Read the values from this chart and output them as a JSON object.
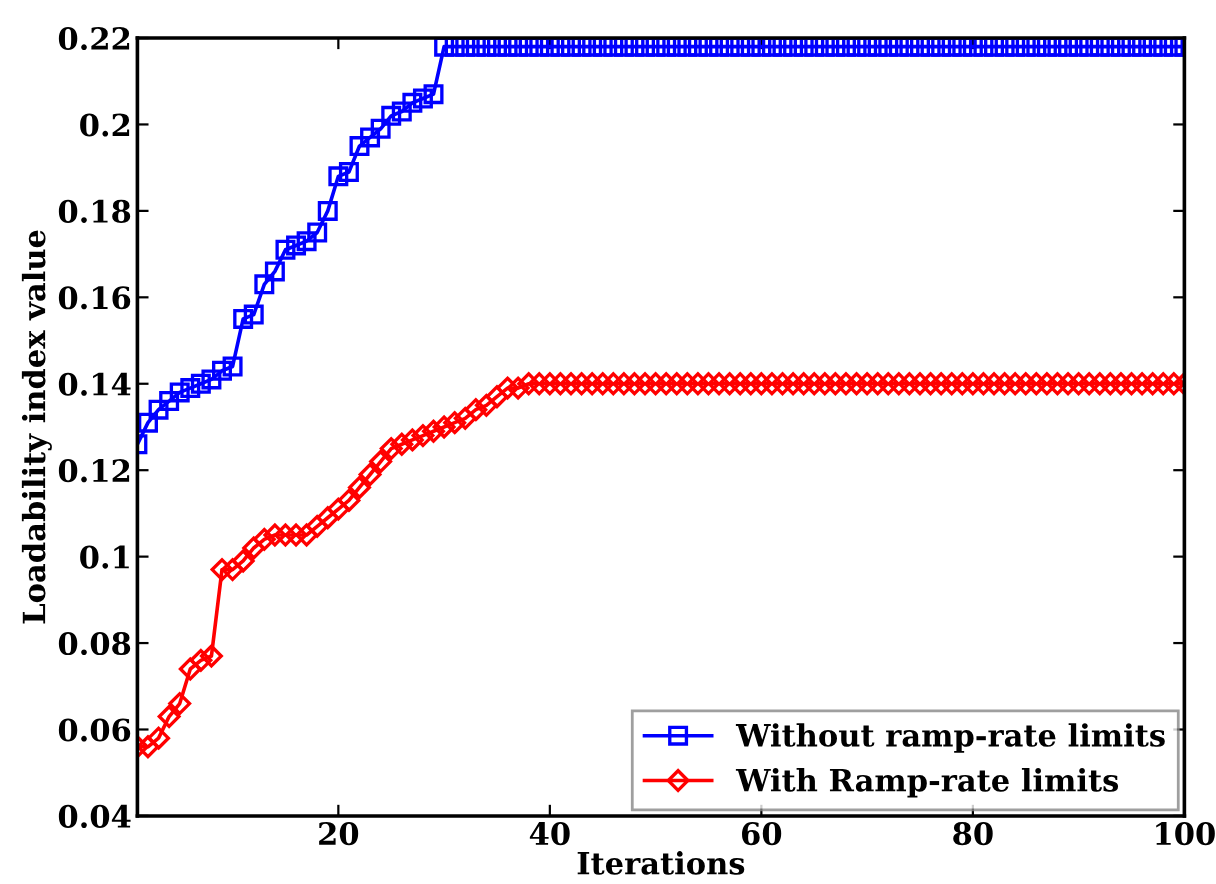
{
  "chart_data": {
    "type": "line",
    "xlabel": "Iterations",
    "ylabel": "Loadability index value",
    "x": [
      1,
      2,
      3,
      4,
      5,
      6,
      7,
      8,
      9,
      10,
      11,
      12,
      13,
      14,
      15,
      16,
      17,
      18,
      19,
      20,
      21,
      22,
      23,
      24,
      25,
      26,
      27,
      28,
      29,
      30,
      31,
      32,
      33,
      34,
      35,
      36,
      37,
      38,
      39,
      40,
      41,
      42,
      43,
      44,
      45,
      46,
      47,
      48,
      49,
      50,
      51,
      52,
      53,
      54,
      55,
      56,
      57,
      58,
      59,
      60,
      61,
      62,
      63,
      64,
      65,
      66,
      67,
      68,
      69,
      70,
      71,
      72,
      73,
      74,
      75,
      76,
      77,
      78,
      79,
      80,
      81,
      82,
      83,
      84,
      85,
      86,
      87,
      88,
      89,
      90,
      91,
      92,
      93,
      94,
      95,
      96,
      97,
      98,
      99,
      100
    ],
    "series": [
      {
        "name": "Without ramp-rate limits",
        "color": "#0000ff",
        "marker": "square",
        "values": [
          0.126,
          0.131,
          0.134,
          0.136,
          0.138,
          0.139,
          0.14,
          0.141,
          0.143,
          0.144,
          0.155,
          0.156,
          0.163,
          0.166,
          0.171,
          0.172,
          0.173,
          0.175,
          0.18,
          0.188,
          0.189,
          0.195,
          0.197,
          0.199,
          0.202,
          0.203,
          0.205,
          0.206,
          0.207,
          0.218,
          0.218,
          0.218,
          0.218,
          0.218,
          0.218,
          0.218,
          0.218,
          0.218,
          0.218,
          0.218,
          0.218,
          0.218,
          0.218,
          0.218,
          0.218,
          0.218,
          0.218,
          0.218,
          0.218,
          0.218,
          0.218,
          0.218,
          0.218,
          0.218,
          0.218,
          0.218,
          0.218,
          0.218,
          0.218,
          0.218,
          0.218,
          0.218,
          0.218,
          0.218,
          0.218,
          0.218,
          0.218,
          0.218,
          0.218,
          0.218,
          0.218,
          0.218,
          0.218,
          0.218,
          0.218,
          0.218,
          0.218,
          0.218,
          0.218,
          0.218,
          0.218,
          0.218,
          0.218,
          0.218,
          0.218,
          0.218,
          0.218,
          0.218,
          0.218,
          0.218,
          0.218,
          0.218,
          0.218,
          0.218,
          0.218,
          0.218,
          0.218,
          0.218,
          0.218,
          0.218
        ]
      },
      {
        "name": "With Ramp-rate limits",
        "color": "#ff0000",
        "marker": "diamond",
        "values": [
          0.056,
          0.056,
          0.058,
          0.063,
          0.066,
          0.074,
          0.076,
          0.077,
          0.097,
          0.097,
          0.099,
          0.102,
          0.104,
          0.105,
          0.105,
          0.105,
          0.105,
          0.107,
          0.109,
          0.111,
          0.113,
          0.116,
          0.119,
          0.122,
          0.125,
          0.126,
          0.127,
          0.128,
          0.129,
          0.13,
          0.131,
          0.132,
          0.134,
          0.135,
          0.137,
          0.139,
          0.139,
          0.14,
          0.14,
          0.14,
          0.14,
          0.14,
          0.14,
          0.14,
          0.14,
          0.14,
          0.14,
          0.14,
          0.14,
          0.14,
          0.14,
          0.14,
          0.14,
          0.14,
          0.14,
          0.14,
          0.14,
          0.14,
          0.14,
          0.14,
          0.14,
          0.14,
          0.14,
          0.14,
          0.14,
          0.14,
          0.14,
          0.14,
          0.14,
          0.14,
          0.14,
          0.14,
          0.14,
          0.14,
          0.14,
          0.14,
          0.14,
          0.14,
          0.14,
          0.14,
          0.14,
          0.14,
          0.14,
          0.14,
          0.14,
          0.14,
          0.14,
          0.14,
          0.14,
          0.14,
          0.14,
          0.14,
          0.14,
          0.14,
          0.14,
          0.14,
          0.14,
          0.14,
          0.14,
          0.14
        ]
      }
    ],
    "xlim": [
      1,
      100
    ],
    "xticks": [
      20,
      40,
      60,
      80,
      100
    ],
    "ylim": [
      0.04,
      0.22
    ],
    "yticks": [
      0.04,
      0.06,
      0.08,
      0.1,
      0.12,
      0.14,
      0.16,
      0.18,
      0.2,
      0.22
    ],
    "grid": false,
    "legend": "bottom right",
    "line_style": "solid"
  }
}
